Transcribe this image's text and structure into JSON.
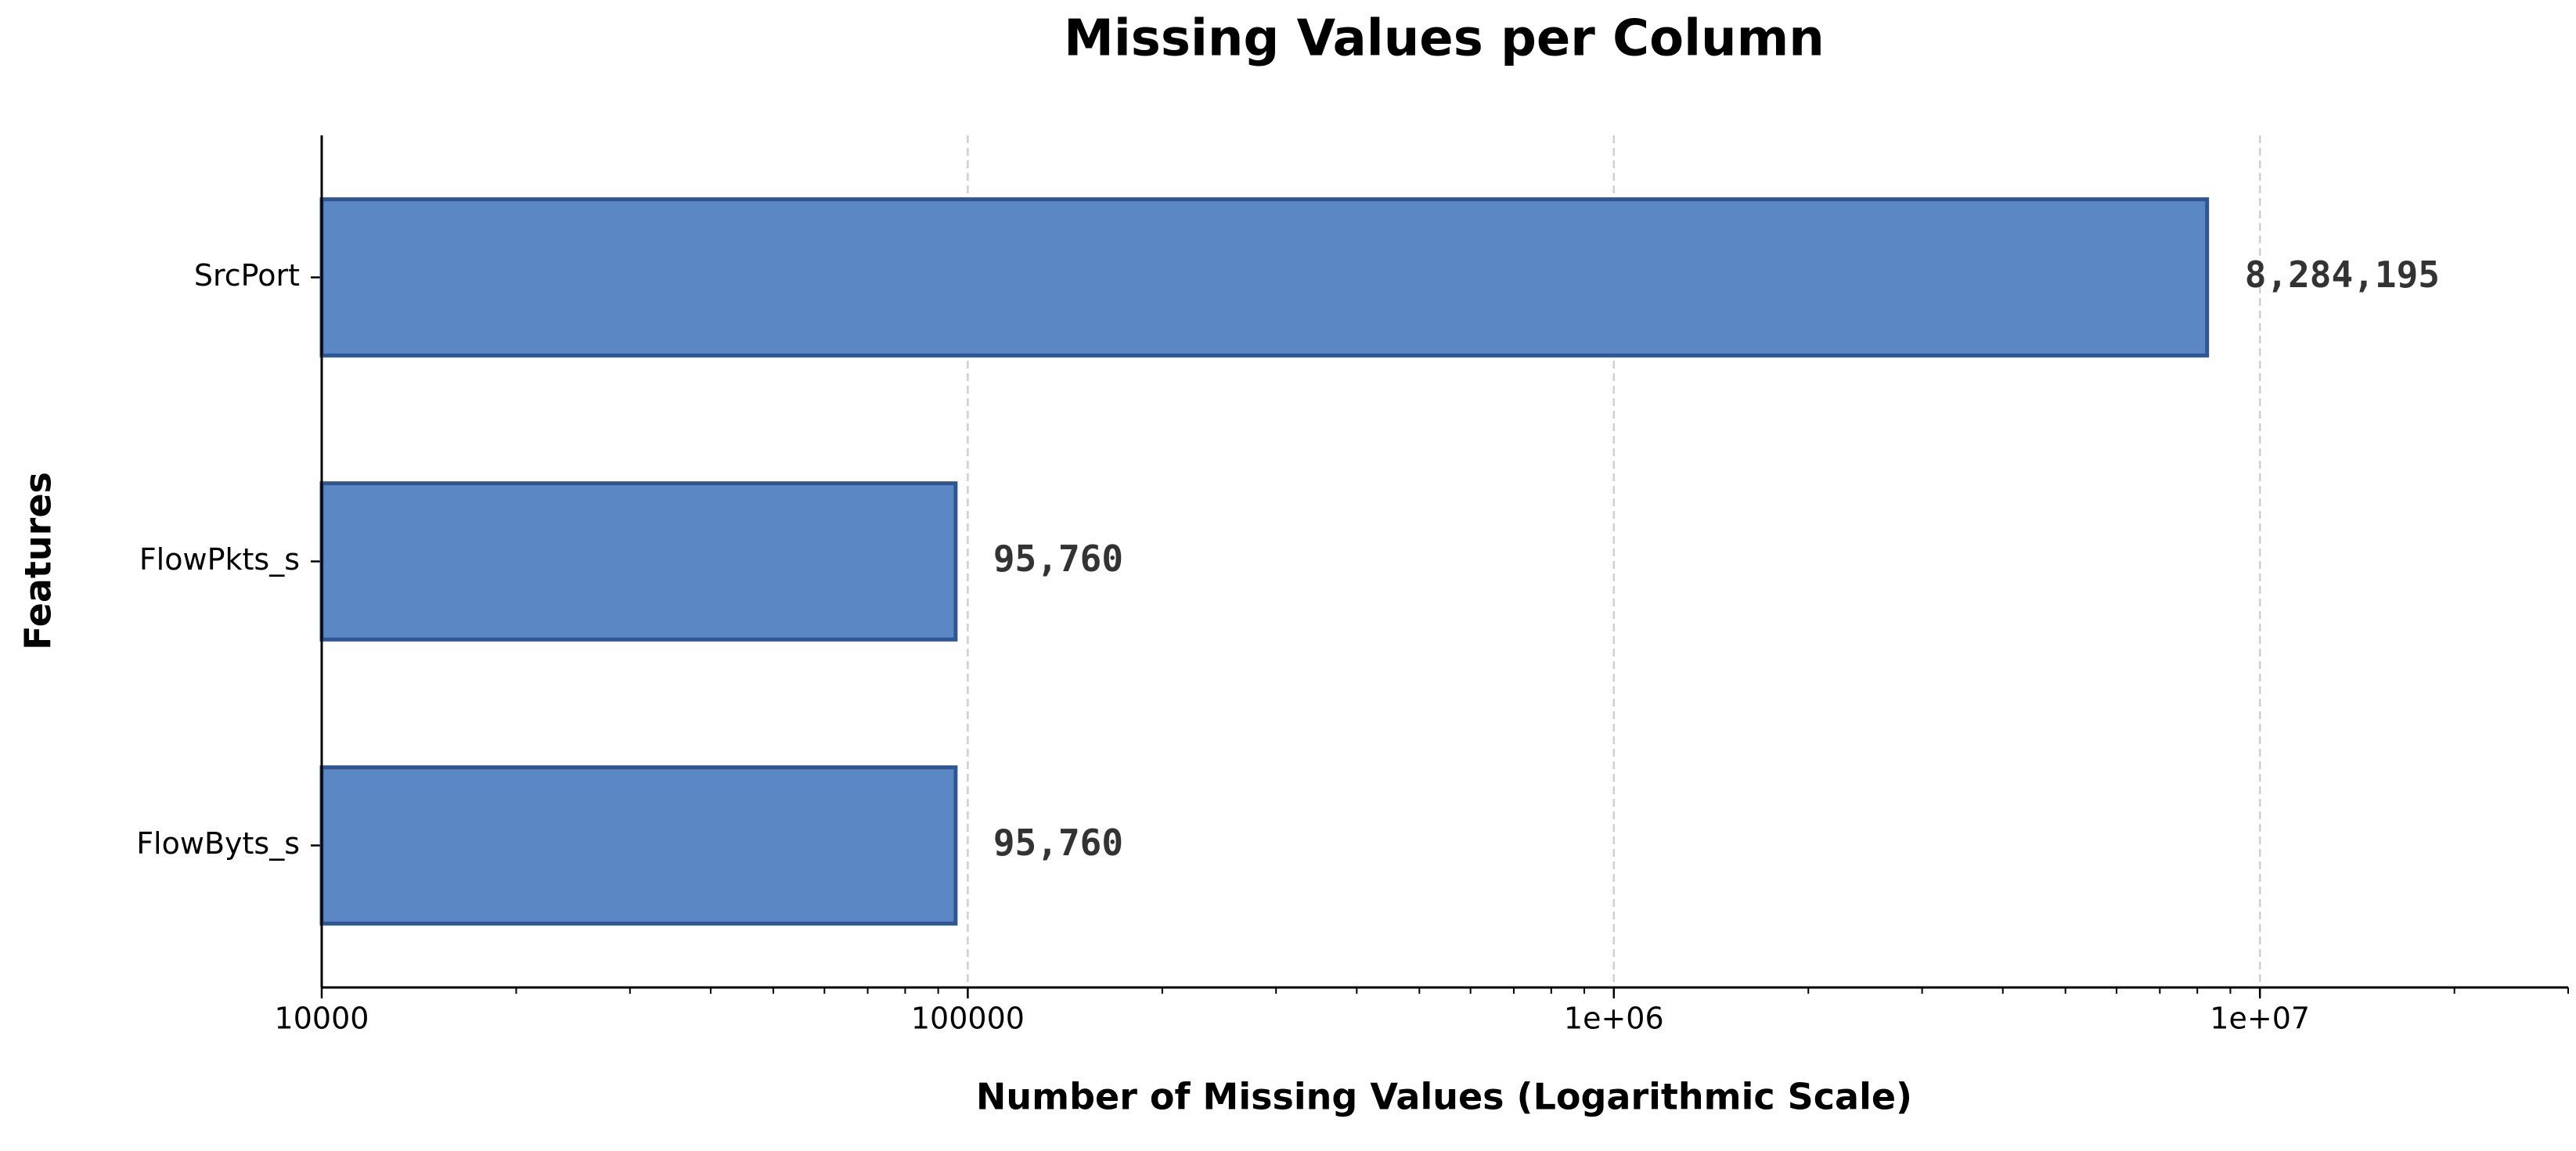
{
  "chart_data": {
    "type": "bar",
    "orientation": "horizontal",
    "title": "Missing Values per Column",
    "x_label": "Number of Missing Values (Logarithmic Scale)",
    "y_label": "Features",
    "categories": [
      "SrcPort",
      "FlowPkts_s",
      "FlowByts_s"
    ],
    "values": [
      8284195,
      95760,
      95760
    ],
    "value_labels": [
      "8,284,195",
      "95,760",
      "95,760"
    ],
    "color": "#5b88c5",
    "edge_color": "#2f5690",
    "xscale": "log",
    "xlim": [
      10000,
      30000000
    ],
    "xticks": [
      10000,
      100000,
      {
        "value": 1000000,
        "label": "1e+06"
      },
      {
        "value": 10000000,
        "label": "1e+07"
      }
    ],
    "xticks_minor": [
      20000,
      30000,
      40000,
      50000,
      60000,
      70000,
      80000,
      90000,
      200000,
      300000,
      400000,
      500000,
      600000,
      700000,
      800000,
      900000,
      2000000,
      3000000,
      4000000,
      5000000,
      6000000,
      7000000,
      8000000,
      9000000,
      20000000,
      30000000
    ],
    "grid": true
  }
}
